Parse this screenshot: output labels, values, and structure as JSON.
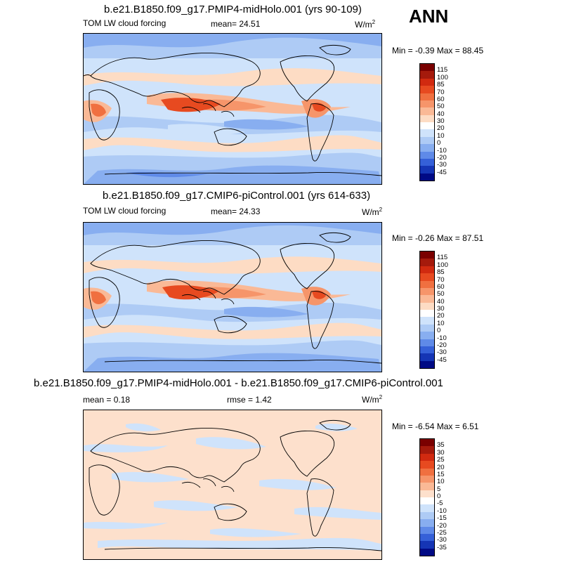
{
  "season": "ANN",
  "panels": [
    {
      "title": "b.e21.B1850.f09_g17.PMIP4-midHolo.001 (yrs 90-109)",
      "left_label": "TOM LW cloud forcing",
      "mean_label": "mean=",
      "mean_value": "24.51",
      "units": "W/m",
      "units_sup": "2",
      "min_label": "Min =",
      "min_value": "-0.39",
      "max_label": "Max =",
      "max_value": "88.45",
      "colorbar_labels": [
        "115",
        "100",
        "85",
        "70",
        "60",
        "50",
        "40",
        "30",
        "20",
        "10",
        "0",
        "-10",
        "-20",
        "-30",
        "-45"
      ]
    },
    {
      "title": "b.e21.B1850.f09_g17.CMIP6-piControl.001 (yrs 614-633)",
      "left_label": "TOM LW cloud forcing",
      "mean_label": "mean=",
      "mean_value": "24.33",
      "units": "W/m",
      "units_sup": "2",
      "min_label": "Min =",
      "min_value": "-0.26",
      "max_label": "Max =",
      "max_value": "87.51",
      "colorbar_labels": [
        "115",
        "100",
        "85",
        "70",
        "60",
        "50",
        "40",
        "30",
        "20",
        "10",
        "0",
        "-10",
        "-20",
        "-30",
        "-45"
      ]
    },
    {
      "title": "b.e21.B1850.f09_g17.PMIP4-midHolo.001 - b.e21.B1850.f09_g17.CMIP6-piControl.001",
      "left_label": "mean =",
      "left_value": "0.18",
      "rmse_label": "rmse =",
      "rmse_value": "1.42",
      "units": "W/m",
      "units_sup": "2",
      "min_label": "Min =",
      "min_value": "-6.54",
      "max_label": "Max =",
      "max_value": "6.51",
      "colorbar_labels": [
        "35",
        "30",
        "25",
        "20",
        "15",
        "10",
        "5",
        "0",
        "-5",
        "-10",
        "-15",
        "-20",
        "-25",
        "-30",
        "-35"
      ]
    }
  ],
  "colorbar_colors": [
    "#7a0000",
    "#a51a0c",
    "#d12a10",
    "#e74a20",
    "#f07040",
    "#f6956a",
    "#fab996",
    "#fddcc4",
    "#ffffff",
    "#cfe3fb",
    "#aecbf5",
    "#88aef0",
    "#5f8ae8",
    "#3560d8",
    "#1535b5",
    "#000a85"
  ],
  "diff_colorbar_colors": [
    "#7a0000",
    "#a51a0c",
    "#d12a10",
    "#e74a20",
    "#f07040",
    "#f6956a",
    "#fab996",
    "#fde0cc",
    "#ffffff",
    "#cfe3fb",
    "#aecbf5",
    "#88aef0",
    "#5f8ae8",
    "#3560d8",
    "#1535b5",
    "#000a85"
  ]
}
